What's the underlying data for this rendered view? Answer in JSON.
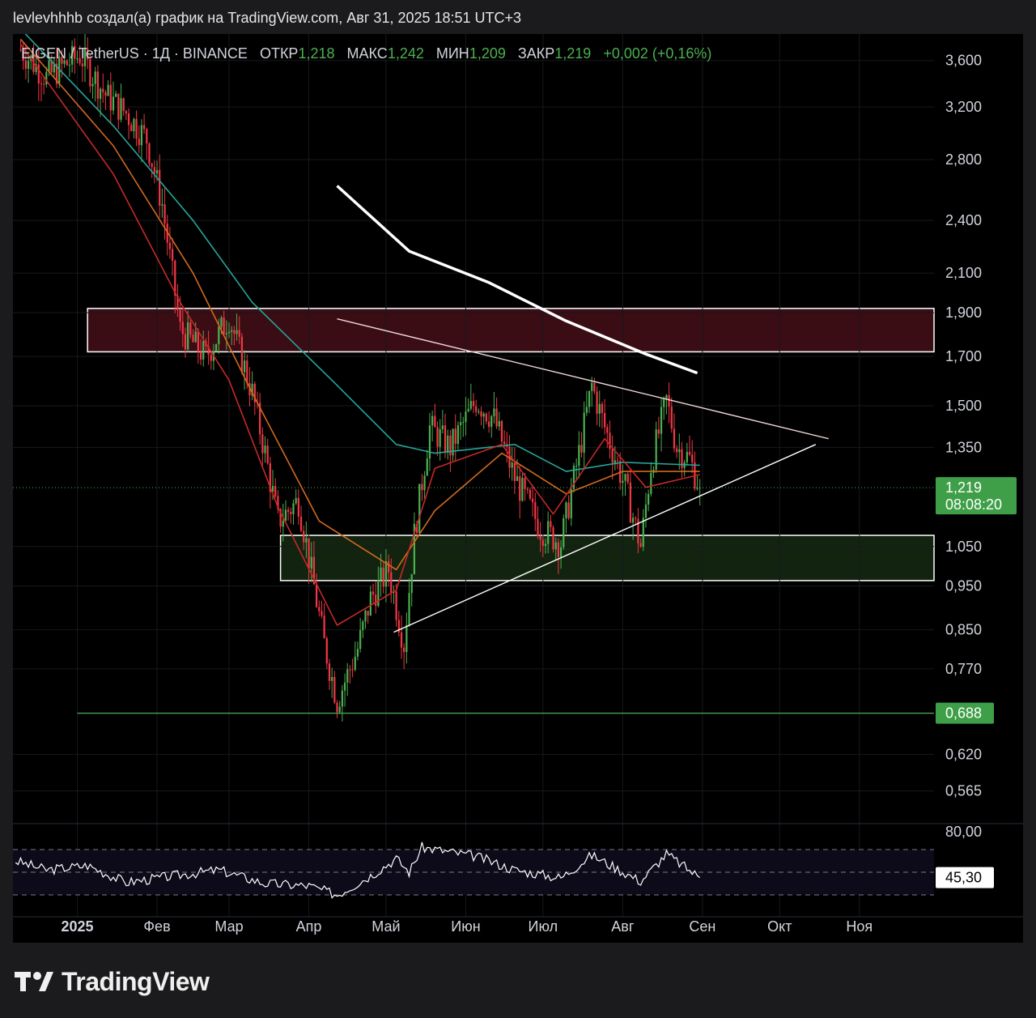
{
  "header": {
    "title": "levlevhhhb создал(а) график на TradingView.com, Авг 31, 2025 18:51 UTC+3"
  },
  "legend": {
    "symbol": "EIGEN / TetherUS · 1Д · BINANCE",
    "open_label": "ОТКР",
    "open_value": "1,218",
    "high_label": "МАКС",
    "high_value": "1,242",
    "low_label": "МИН",
    "low_value": "1,209",
    "close_label": "ЗАКР",
    "close_value": "1,219",
    "change": "+0,002 (+0,16%)"
  },
  "colors": {
    "background": "#000000",
    "up": "#4caf50",
    "down": "#f23645",
    "ema_cyan": "#26a69a",
    "ema_orange": "#d2691e",
    "ema_red": "#c62828",
    "resistance_zone": "#3a0d14",
    "support_zone": "#12240f",
    "badge_green": "#3f9f48"
  },
  "chart_data": {
    "type": "candlestick",
    "y_scale": "log",
    "ylim": [
      0.52,
      3.85
    ],
    "price_ticks": [
      "3,600",
      "3,200",
      "2,800",
      "2,400",
      "2,100",
      "1,900",
      "1,700",
      "1,500",
      "1,350",
      "1,050",
      "0,950",
      "0,850",
      "0,770",
      "0,620",
      "0,565"
    ],
    "time_ticks": [
      "2025",
      "Фев",
      "Мар",
      "Апр",
      "Май",
      "Июн",
      "Июл",
      "Авг",
      "Сен",
      "Окт",
      "Ноя"
    ],
    "xlim": [
      "2024-12-07",
      "2025-11-30"
    ],
    "last_price": {
      "value": 1.219,
      "label": "1,219",
      "countdown": "08:08:20"
    },
    "level_line": {
      "value": 0.688,
      "label": "0,688",
      "from": "2025-01-01"
    },
    "zones": [
      {
        "kind": "resistance",
        "from": "2025-01-05",
        "price_low": 1.72,
        "price_high": 1.92
      },
      {
        "kind": "support",
        "from": "2025-03-21",
        "price_low": 0.963,
        "price_high": 1.08
      }
    ],
    "trendlines": [
      {
        "kind": "descending",
        "points": [
          [
            "2025-04-12",
            1.87
          ],
          [
            "2025-10-20",
            1.38
          ]
        ]
      },
      {
        "kind": "ascending",
        "points": [
          [
            "2025-05-04",
            0.845
          ],
          [
            "2025-10-15",
            1.36
          ]
        ]
      },
      {
        "kind": "drawn-curve",
        "points": [
          [
            "2025-04-12",
            2.62
          ],
          [
            "2025-05-10",
            2.22
          ],
          [
            "2025-06-10",
            2.05
          ],
          [
            "2025-07-10",
            1.86
          ],
          [
            "2025-08-10",
            1.71
          ],
          [
            "2025-08-30",
            1.63
          ]
        ]
      }
    ],
    "anchors": [
      [
        "2024-12-10",
        3.7
      ],
      [
        "2024-12-20",
        3.45
      ],
      [
        "2025-01-02",
        3.65
      ],
      [
        "2025-01-12",
        3.3
      ],
      [
        "2025-01-20",
        3.15
      ],
      [
        "2025-01-28",
        2.95
      ],
      [
        "2025-02-03",
        2.5
      ],
      [
        "2025-02-10",
        1.82
      ],
      [
        "2025-02-20",
        1.7
      ],
      [
        "2025-03-01",
        1.88
      ],
      [
        "2025-03-10",
        1.55
      ],
      [
        "2025-03-15",
        1.33
      ],
      [
        "2025-03-20",
        1.12
      ],
      [
        "2025-03-28",
        1.18
      ],
      [
        "2025-04-07",
        0.82
      ],
      [
        "2025-04-12",
        0.71
      ],
      [
        "2025-04-20",
        0.81
      ],
      [
        "2025-04-25",
        0.92
      ],
      [
        "2025-05-02",
        0.99
      ],
      [
        "2025-05-08",
        0.82
      ],
      [
        "2025-05-12",
        1.08
      ],
      [
        "2025-05-18",
        1.42
      ],
      [
        "2025-05-26",
        1.35
      ],
      [
        "2025-06-05",
        1.52
      ],
      [
        "2025-06-12",
        1.45
      ],
      [
        "2025-06-20",
        1.25
      ],
      [
        "2025-06-30",
        1.1
      ],
      [
        "2025-07-08",
        1.06
      ],
      [
        "2025-07-15",
        1.33
      ],
      [
        "2025-07-20",
        1.58
      ],
      [
        "2025-07-25",
        1.42
      ],
      [
        "2025-08-02",
        1.22
      ],
      [
        "2025-08-08",
        1.05
      ],
      [
        "2025-08-12",
        1.29
      ],
      [
        "2025-08-18",
        1.52
      ],
      [
        "2025-08-22",
        1.35
      ],
      [
        "2025-08-27",
        1.31
      ],
      [
        "2025-08-31",
        1.219
      ]
    ],
    "ema_cyan": [
      [
        "2024-12-10",
        3.9
      ],
      [
        "2025-01-15",
        3.05
      ],
      [
        "2025-02-15",
        2.4
      ],
      [
        "2025-03-10",
        1.95
      ],
      [
        "2025-04-10",
        1.6
      ],
      [
        "2025-05-05",
        1.36
      ],
      [
        "2025-05-20",
        1.33
      ],
      [
        "2025-06-20",
        1.36
      ],
      [
        "2025-07-10",
        1.27
      ],
      [
        "2025-08-01",
        1.3
      ],
      [
        "2025-08-31",
        1.29
      ]
    ],
    "ema_orange": [
      [
        "2024-12-10",
        3.8
      ],
      [
        "2025-01-15",
        2.9
      ],
      [
        "2025-02-15",
        2.1
      ],
      [
        "2025-03-10",
        1.55
      ],
      [
        "2025-04-05",
        1.12
      ],
      [
        "2025-05-05",
        0.99
      ],
      [
        "2025-05-20",
        1.15
      ],
      [
        "2025-06-15",
        1.33
      ],
      [
        "2025-07-10",
        1.2
      ],
      [
        "2025-08-01",
        1.27
      ],
      [
        "2025-08-31",
        1.27
      ]
    ],
    "ema_red": [
      [
        "2024-12-10",
        3.75
      ],
      [
        "2025-01-15",
        2.7
      ],
      [
        "2025-02-10",
        1.95
      ],
      [
        "2025-03-01",
        1.6
      ],
      [
        "2025-03-20",
        1.16
      ],
      [
        "2025-04-12",
        0.86
      ],
      [
        "2025-05-05",
        0.94
      ],
      [
        "2025-05-20",
        1.28
      ],
      [
        "2025-06-15",
        1.36
      ],
      [
        "2025-07-05",
        1.14
      ],
      [
        "2025-07-25",
        1.38
      ],
      [
        "2025-08-10",
        1.22
      ],
      [
        "2025-08-31",
        1.26
      ]
    ],
    "rsi": {
      "value_label": "45,30",
      "top_label": "80,00",
      "levels": [
        80,
        70,
        50,
        30
      ],
      "points": [
        [
          "2024-12-08",
          60
        ],
        [
          "2024-12-20",
          52
        ],
        [
          "2025-01-05",
          56
        ],
        [
          "2025-01-20",
          41
        ],
        [
          "2025-02-05",
          46
        ],
        [
          "2025-02-25",
          52
        ],
        [
          "2025-03-15",
          40
        ],
        [
          "2025-04-01",
          38
        ],
        [
          "2025-04-12",
          30
        ],
        [
          "2025-04-25",
          47
        ],
        [
          "2025-05-05",
          62
        ],
        [
          "2025-05-10",
          50
        ],
        [
          "2025-05-15",
          72
        ],
        [
          "2025-06-05",
          64
        ],
        [
          "2025-06-20",
          52
        ],
        [
          "2025-07-08",
          45
        ],
        [
          "2025-07-20",
          65
        ],
        [
          "2025-08-08",
          42
        ],
        [
          "2025-08-18",
          66
        ],
        [
          "2025-08-31",
          45.3
        ]
      ]
    }
  },
  "footer": {
    "brand": "TradingView"
  }
}
